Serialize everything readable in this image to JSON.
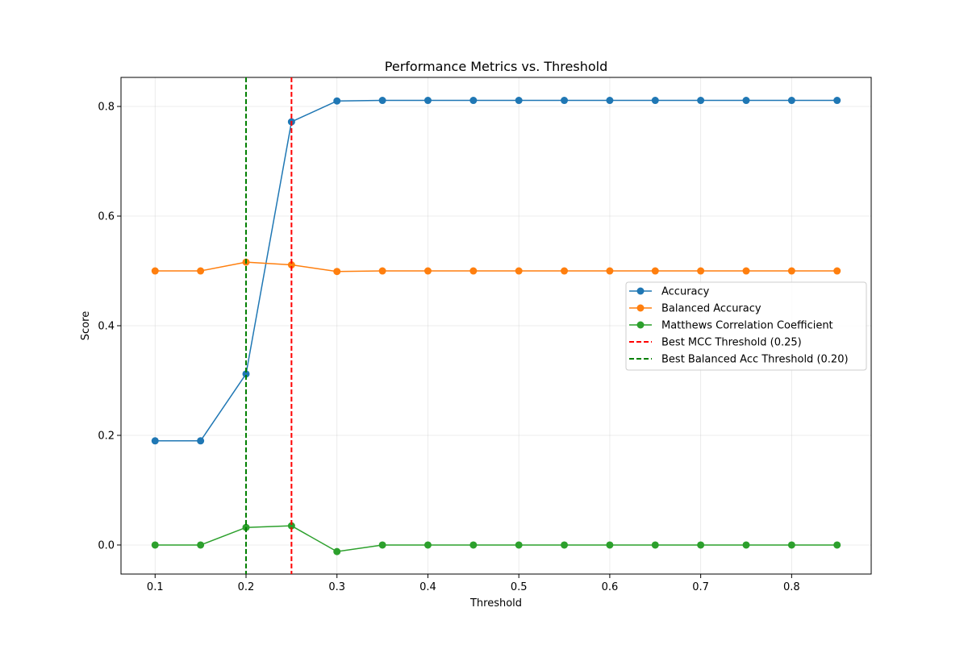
{
  "chart_data": {
    "type": "line",
    "title": "Performance Metrics vs. Threshold",
    "xlabel": "Threshold",
    "ylabel": "Score",
    "xlim": [
      0.0625,
      0.8875
    ],
    "ylim": [
      -0.053,
      0.853
    ],
    "xticks": [
      0.1,
      0.2,
      0.3,
      0.4,
      0.5,
      0.6,
      0.7,
      0.8
    ],
    "xtick_labels": [
      "0.1",
      "0.2",
      "0.3",
      "0.4",
      "0.5",
      "0.6",
      "0.7",
      "0.8"
    ],
    "yticks": [
      0.0,
      0.2,
      0.4,
      0.6,
      0.8
    ],
    "ytick_labels": [
      "0.0",
      "0.2",
      "0.4",
      "0.6",
      "0.8"
    ],
    "grid": true,
    "legend_position": "center-right",
    "x": [
      0.1,
      0.15,
      0.2,
      0.25,
      0.3,
      0.35,
      0.4,
      0.45,
      0.5,
      0.55,
      0.6,
      0.65,
      0.7,
      0.75,
      0.8,
      0.85
    ],
    "series": [
      {
        "name": "Accuracy",
        "color": "#1f77b4",
        "values": [
          0.19,
          0.19,
          0.312,
          0.772,
          0.81,
          0.811,
          0.811,
          0.811,
          0.811,
          0.811,
          0.811,
          0.811,
          0.811,
          0.811,
          0.811,
          0.811
        ]
      },
      {
        "name": "Balanced Accuracy",
        "color": "#ff7f0e",
        "values": [
          0.5,
          0.5,
          0.516,
          0.511,
          0.499,
          0.5,
          0.5,
          0.5,
          0.5,
          0.5,
          0.5,
          0.5,
          0.5,
          0.5,
          0.5,
          0.5
        ]
      },
      {
        "name": "Matthews Correlation Coefficient",
        "color": "#2ca02c",
        "values": [
          0.0,
          0.0,
          0.032,
          0.035,
          -0.012,
          0.0,
          0.0,
          0.0,
          0.0,
          0.0,
          0.0,
          0.0,
          0.0,
          0.0,
          0.0,
          0.0
        ]
      }
    ],
    "vlines": [
      {
        "name": "Best MCC Threshold (0.25)",
        "x": 0.25,
        "color": "#ff0000",
        "style": "dashed"
      },
      {
        "name": "Best Balanced Acc Threshold (0.20)",
        "x": 0.2,
        "color": "#008000",
        "style": "dashed"
      }
    ]
  }
}
